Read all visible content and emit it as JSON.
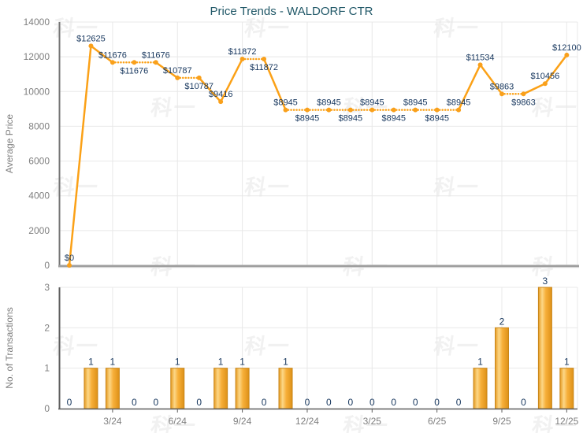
{
  "title": "Price Trends - WALDORF CTR",
  "watermark": "科一",
  "colors": {
    "line_orange": "#FBA117",
    "marker_orange": "#F9A01B",
    "bar_edge": "#C9861A",
    "bar_grad_left": "#E59A20",
    "bar_grad_light": "#FCD787",
    "bar_grad_mid": "#F7AF39",
    "bar_grad_right": "#DD9118",
    "label_navy": "#17375E",
    "title_teal": "#215868",
    "axis_text_gray": "#7F7F7F",
    "grid_gray": "#E8E8E8",
    "axis_dark": "#5E5E5E",
    "separator_gray": "#9E9E9E",
    "separator_light": "#D2D2D2"
  },
  "chart_data": [
    {
      "type": "line",
      "name": "average-price-trend",
      "title": "Price Trends - WALDORF CTR",
      "xlabel": "",
      "ylabel": "Average Price",
      "ylim": [
        0,
        14000
      ],
      "yticks": [
        0,
        2000,
        4000,
        6000,
        8000,
        10000,
        12000,
        14000
      ],
      "ytick_labels": [
        "0",
        "2000",
        "4000",
        "6000",
        "8000",
        "10000",
        "12000",
        "14000"
      ],
      "grid": true,
      "legend": "none",
      "categories": [
        "1/24",
        "2/24",
        "3/24",
        "4/24",
        "5/24",
        "6/24",
        "7/24",
        "8/24",
        "9/24",
        "10/24",
        "11/24",
        "12/24",
        "1/25",
        "2/25",
        "3/25",
        "4/25",
        "5/25",
        "6/25",
        "7/25",
        "8/25",
        "9/25",
        "10/25",
        "11/25",
        "12/25"
      ],
      "xtick_indices": [
        2,
        5,
        8,
        11,
        14,
        17,
        20,
        23
      ],
      "xtick_labels": [
        "3/24",
        "6/24",
        "9/24",
        "12/24",
        "3/25",
        "6/25",
        "9/25",
        "12/25"
      ],
      "values": [
        0,
        12625,
        11676,
        11676,
        11676,
        10787,
        10787,
        9416,
        11872,
        11872,
        8945,
        8945,
        8945,
        8945,
        8945,
        8945,
        8945,
        8945,
        8945,
        11534,
        9863,
        9863,
        10456,
        12100
      ],
      "point_labels": [
        "$0",
        "$12625",
        "$11676",
        "$11676",
        "$11676",
        "$10787",
        "$10787",
        "$9416",
        "$11872",
        "$11872",
        "$8945",
        "$8945",
        "$8945",
        "$8945",
        "$8945",
        "$8945",
        "$8945",
        "$8945",
        "$8945",
        "$11534",
        "$9863",
        "$9863",
        "$10456",
        "$12100"
      ],
      "label_side": [
        "above",
        "above",
        "above",
        "below",
        "above",
        "above",
        "below",
        "above",
        "above",
        "below",
        "above",
        "below",
        "above",
        "below",
        "above",
        "below",
        "above",
        "below",
        "above",
        "above",
        "above",
        "below",
        "above",
        "above"
      ],
      "dotted_when_value_unchanged": true
    },
    {
      "type": "bar",
      "name": "transactions",
      "xlabel": "",
      "ylabel": "No. of Transactions",
      "ylim": [
        0,
        3
      ],
      "yticks": [
        0,
        1,
        2,
        3
      ],
      "ytick_labels": [
        "0",
        "1",
        "2",
        "3"
      ],
      "grid": true,
      "legend": "none",
      "categories": [
        "1/24",
        "2/24",
        "3/24",
        "4/24",
        "5/24",
        "6/24",
        "7/24",
        "8/24",
        "9/24",
        "10/24",
        "11/24",
        "12/24",
        "1/25",
        "2/25",
        "3/25",
        "4/25",
        "5/25",
        "6/25",
        "7/25",
        "8/25",
        "9/25",
        "10/25",
        "11/25",
        "12/25"
      ],
      "xtick_indices": [
        2,
        5,
        8,
        11,
        14,
        17,
        20,
        23
      ],
      "xtick_labels": [
        "3/24",
        "6/24",
        "9/24",
        "12/24",
        "3/25",
        "6/25",
        "9/25",
        "12/25"
      ],
      "values": [
        0,
        1,
        1,
        0,
        0,
        1,
        0,
        1,
        1,
        0,
        1,
        0,
        0,
        0,
        0,
        0,
        0,
        0,
        0,
        1,
        2,
        0,
        3,
        1
      ]
    }
  ]
}
